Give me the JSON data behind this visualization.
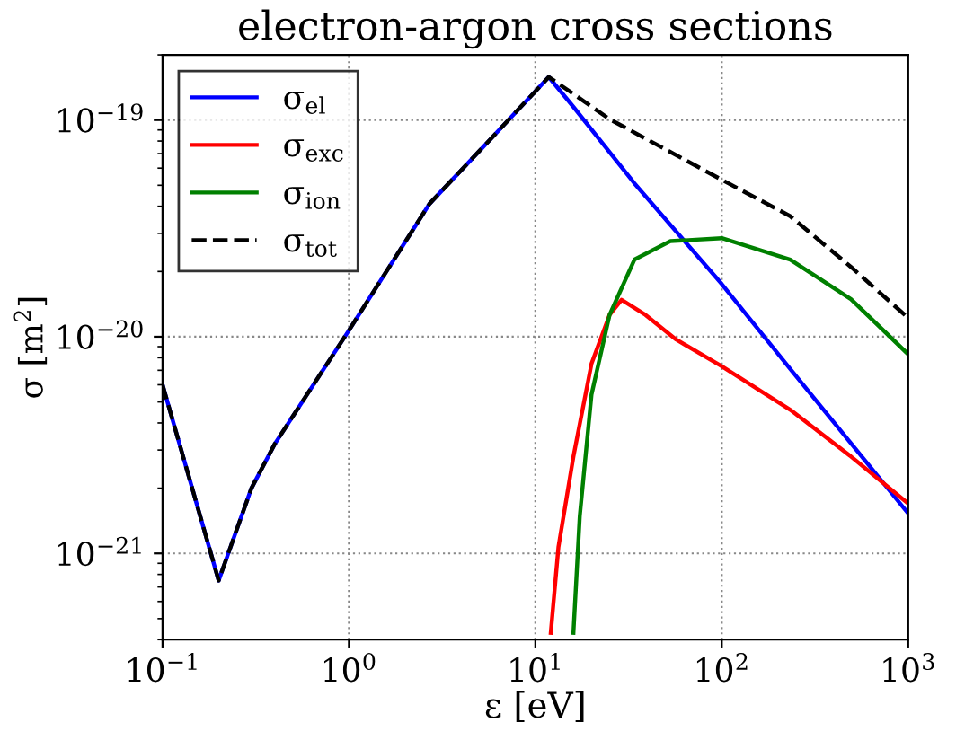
{
  "chart_data": {
    "type": "line",
    "title": "electron-argon cross sections",
    "xlabel": "ε [eV]",
    "ylabel": "σ [m$^{2}$]",
    "log": "xy",
    "grid": true,
    "legend": "top left",
    "xlim": [
      0.1,
      1000
    ],
    "ylim": [
      4e-22,
      2e-19
    ],
    "xticks": [
      {
        "value": 0.1,
        "label": "10$^{−1}$"
      },
      {
        "value": 1,
        "label": "10$^{0}$"
      },
      {
        "value": 10,
        "label": "10$^{1}$"
      },
      {
        "value": 100,
        "label": "10$^{2}$"
      },
      {
        "value": 1000,
        "label": "10$^{3}$"
      }
    ],
    "yticks": [
      {
        "value": 1e-21,
        "label": "10$^{−21}$"
      },
      {
        "value": 1e-20,
        "label": "10$^{−20}$"
      },
      {
        "value": 1e-19,
        "label": "10$^{−19}$"
      }
    ],
    "series": [
      {
        "name": "σ$_{el}$",
        "color": "#0000ff",
        "line_style": "solid",
        "x": [
          0.1,
          0.2,
          0.3,
          0.4,
          1,
          2.7,
          5.7,
          11.8,
          16,
          34,
          100,
          233,
          1000
        ],
        "values": [
          6e-21,
          7.5e-22,
          2e-21,
          3.2e-21,
          1.07e-20,
          4.1e-20,
          8.1e-20,
          1.58e-19,
          1.15e-19,
          5.1e-20,
          1.75e-20,
          7.1e-21,
          1.53e-21
        ]
      },
      {
        "name": "σ$_{exc}$",
        "color": "#ff0000",
        "line_style": "solid",
        "x": [
          12.1,
          13.3,
          16,
          20,
          25,
          29,
          39,
          57,
          100,
          233,
          493,
          1000
        ],
        "values": [
          4.3e-22,
          1.07e-21,
          2.8e-21,
          7.5e-21,
          1.26e-20,
          1.48e-20,
          1.26e-20,
          9.7e-21,
          7.3e-21,
          4.6e-21,
          2.8e-21,
          1.7e-21
        ]
      },
      {
        "name": "σ$_{ion}$",
        "color": "#008000",
        "line_style": "solid",
        "x": [
          16,
          17.3,
          20,
          25,
          34,
          53,
          100,
          233,
          493,
          1000
        ],
        "values": [
          4.3e-22,
          1.48e-21,
          5.4e-21,
          1.26e-20,
          2.27e-20,
          2.76e-20,
          2.85e-20,
          2.27e-20,
          1.49e-20,
          8.3e-21
        ]
      },
      {
        "name": "σ$_{tot}$",
        "color": "#000000",
        "line_style": "dashed",
        "x": [
          0.1,
          0.2,
          0.3,
          0.4,
          1,
          2.7,
          5.7,
          11.8,
          16,
          25,
          100,
          233,
          493,
          1000
        ],
        "values": [
          6e-21,
          7.5e-22,
          2e-21,
          3.2e-21,
          1.07e-20,
          4.1e-20,
          8.1e-20,
          1.58e-19,
          1.32e-19,
          1.01e-19,
          5.3e-20,
          3.6e-20,
          2.1e-20,
          1.22e-20
        ]
      }
    ]
  }
}
